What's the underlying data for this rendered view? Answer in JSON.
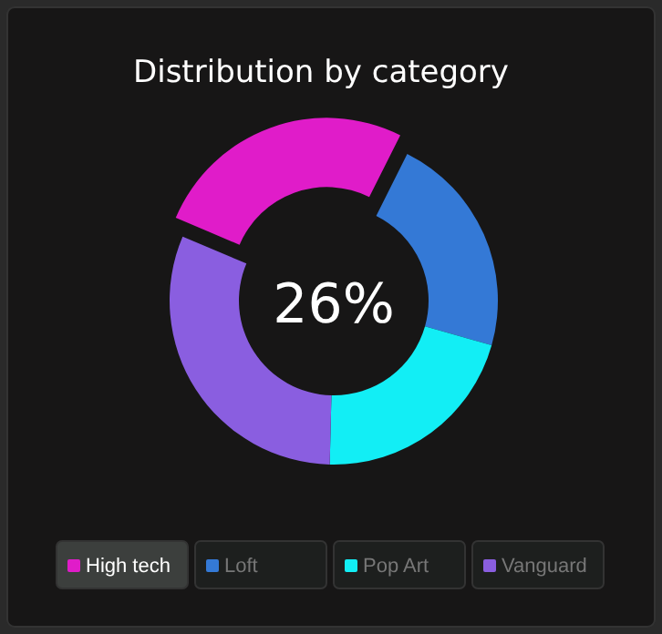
{
  "chart_data": {
    "type": "donut",
    "title": "Distribution by category",
    "categories": [
      "High tech",
      "Loft",
      "Pop Art",
      "Vanguard"
    ],
    "values": [
      26,
      22,
      21,
      31
    ],
    "colors": [
      "#e01cc9",
      "#3479d6",
      "#12eef5",
      "#8a5ee0"
    ],
    "annotations": [
      "26%"
    ],
    "legend": "bottom"
  }
}
